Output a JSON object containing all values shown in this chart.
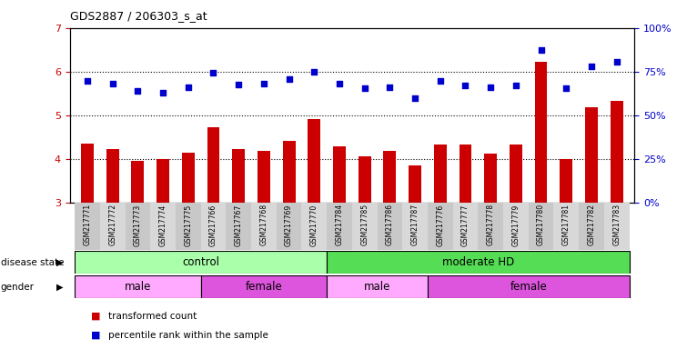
{
  "title": "GDS2887 / 206303_s_at",
  "samples": [
    "GSM217771",
    "GSM217772",
    "GSM217773",
    "GSM217774",
    "GSM217775",
    "GSM217766",
    "GSM217767",
    "GSM217768",
    "GSM217769",
    "GSM217770",
    "GSM217784",
    "GSM217785",
    "GSM217786",
    "GSM217787",
    "GSM217776",
    "GSM217777",
    "GSM217778",
    "GSM217779",
    "GSM217780",
    "GSM217781",
    "GSM217782",
    "GSM217783"
  ],
  "bar_values": [
    4.35,
    4.22,
    3.95,
    4.0,
    4.15,
    4.72,
    4.22,
    4.18,
    4.42,
    4.92,
    4.28,
    4.05,
    4.18,
    3.85,
    4.32,
    4.32,
    4.12,
    4.32,
    6.22,
    4.0,
    5.18,
    5.32
  ],
  "dot_values": [
    5.78,
    5.72,
    5.55,
    5.52,
    5.65,
    5.98,
    5.7,
    5.72,
    5.82,
    6.0,
    5.72,
    5.62,
    5.65,
    5.38,
    5.78,
    5.68,
    5.65,
    5.68,
    6.5,
    5.62,
    6.12,
    6.22
  ],
  "bar_color": "#cc0000",
  "dot_color": "#0000cc",
  "ylim_left": [
    3,
    7
  ],
  "ylim_right": [
    0,
    100
  ],
  "yticks_left": [
    3,
    4,
    5,
    6,
    7
  ],
  "yticks_right": [
    0,
    25,
    50,
    75,
    100
  ],
  "ytick_labels_right": [
    "0%",
    "25%",
    "50%",
    "75%",
    "100%"
  ],
  "hlines": [
    4.0,
    5.0,
    6.0
  ],
  "disease_colors": {
    "control": "#aaffaa",
    "moderate HD": "#55dd55"
  },
  "gender_groups": [
    {
      "label": "male",
      "start": 0,
      "end": 4,
      "color": "#ffaaff"
    },
    {
      "label": "female",
      "start": 5,
      "end": 9,
      "color": "#dd55dd"
    },
    {
      "label": "male",
      "start": 10,
      "end": 13,
      "color": "#ffaaff"
    },
    {
      "label": "female",
      "start": 14,
      "end": 21,
      "color": "#dd55dd"
    }
  ],
  "legend_items": [
    {
      "label": "transformed count",
      "color": "#cc0000"
    },
    {
      "label": "percentile rank within the sample",
      "color": "#0000cc"
    }
  ]
}
